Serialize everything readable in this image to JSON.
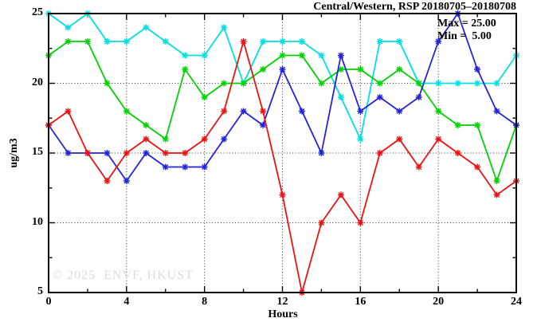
{
  "title": "Central/Western, RSP 20180705–20180708",
  "annotations": {
    "max_label": "Max = 25.00",
    "min_label": "Min =  5.00"
  },
  "watermark": "© 2025  ENVF, HKUST",
  "chart_data": {
    "type": "line",
    "title": "Central/Western, RSP 20180705–20180708",
    "xlabel": "Hours",
    "ylabel": "ug/m3",
    "xlim": [
      0,
      24
    ],
    "ylim": [
      5,
      25
    ],
    "x_ticks": [
      0,
      4,
      8,
      12,
      16,
      20,
      24
    ],
    "x_minor_step": 2,
    "y_ticks": [
      5,
      10,
      15,
      20,
      25
    ],
    "y_minor_step": 2.5,
    "grid_x": [
      4,
      8,
      12,
      16,
      20
    ],
    "grid_y": [
      10,
      15,
      20
    ],
    "legend": "none",
    "marker": "asterisk",
    "x": [
      0,
      1,
      2,
      3,
      4,
      5,
      6,
      7,
      8,
      9,
      10,
      11,
      12,
      13,
      14,
      15,
      16,
      17,
      18,
      19,
      20,
      21,
      22,
      23,
      24
    ],
    "series": [
      {
        "name": "cyan-series",
        "color": "#00e0e0",
        "values": [
          25,
          24,
          25,
          23,
          23,
          24,
          23,
          22,
          22,
          24,
          20,
          23,
          23,
          23,
          22,
          19,
          16,
          23,
          23,
          20,
          20,
          20,
          20,
          20,
          22
        ]
      },
      {
        "name": "green-series",
        "color": "#00d300",
        "values": [
          22,
          23,
          23,
          20,
          18,
          17,
          16,
          21,
          19,
          20,
          20,
          21,
          22,
          22,
          20,
          21,
          21,
          20,
          21,
          20,
          18,
          17,
          17,
          13,
          17
        ]
      },
      {
        "name": "blue-series",
        "color": "#2323dd",
        "values": [
          17,
          15,
          15,
          15,
          13,
          15,
          14,
          14,
          14,
          16,
          18,
          17,
          21,
          18,
          15,
          22,
          18,
          19,
          18,
          19,
          23,
          25,
          21,
          18,
          17
        ]
      },
      {
        "name": "red-series",
        "color": "#ee1111",
        "values": [
          17,
          18,
          15,
          13,
          15,
          16,
          15,
          15,
          16,
          18,
          23,
          18,
          12,
          5,
          10,
          12,
          10,
          15,
          16,
          14,
          16,
          15,
          14,
          12,
          13
        ]
      }
    ],
    "stats": {
      "max": 25.0,
      "min": 5.0
    }
  }
}
